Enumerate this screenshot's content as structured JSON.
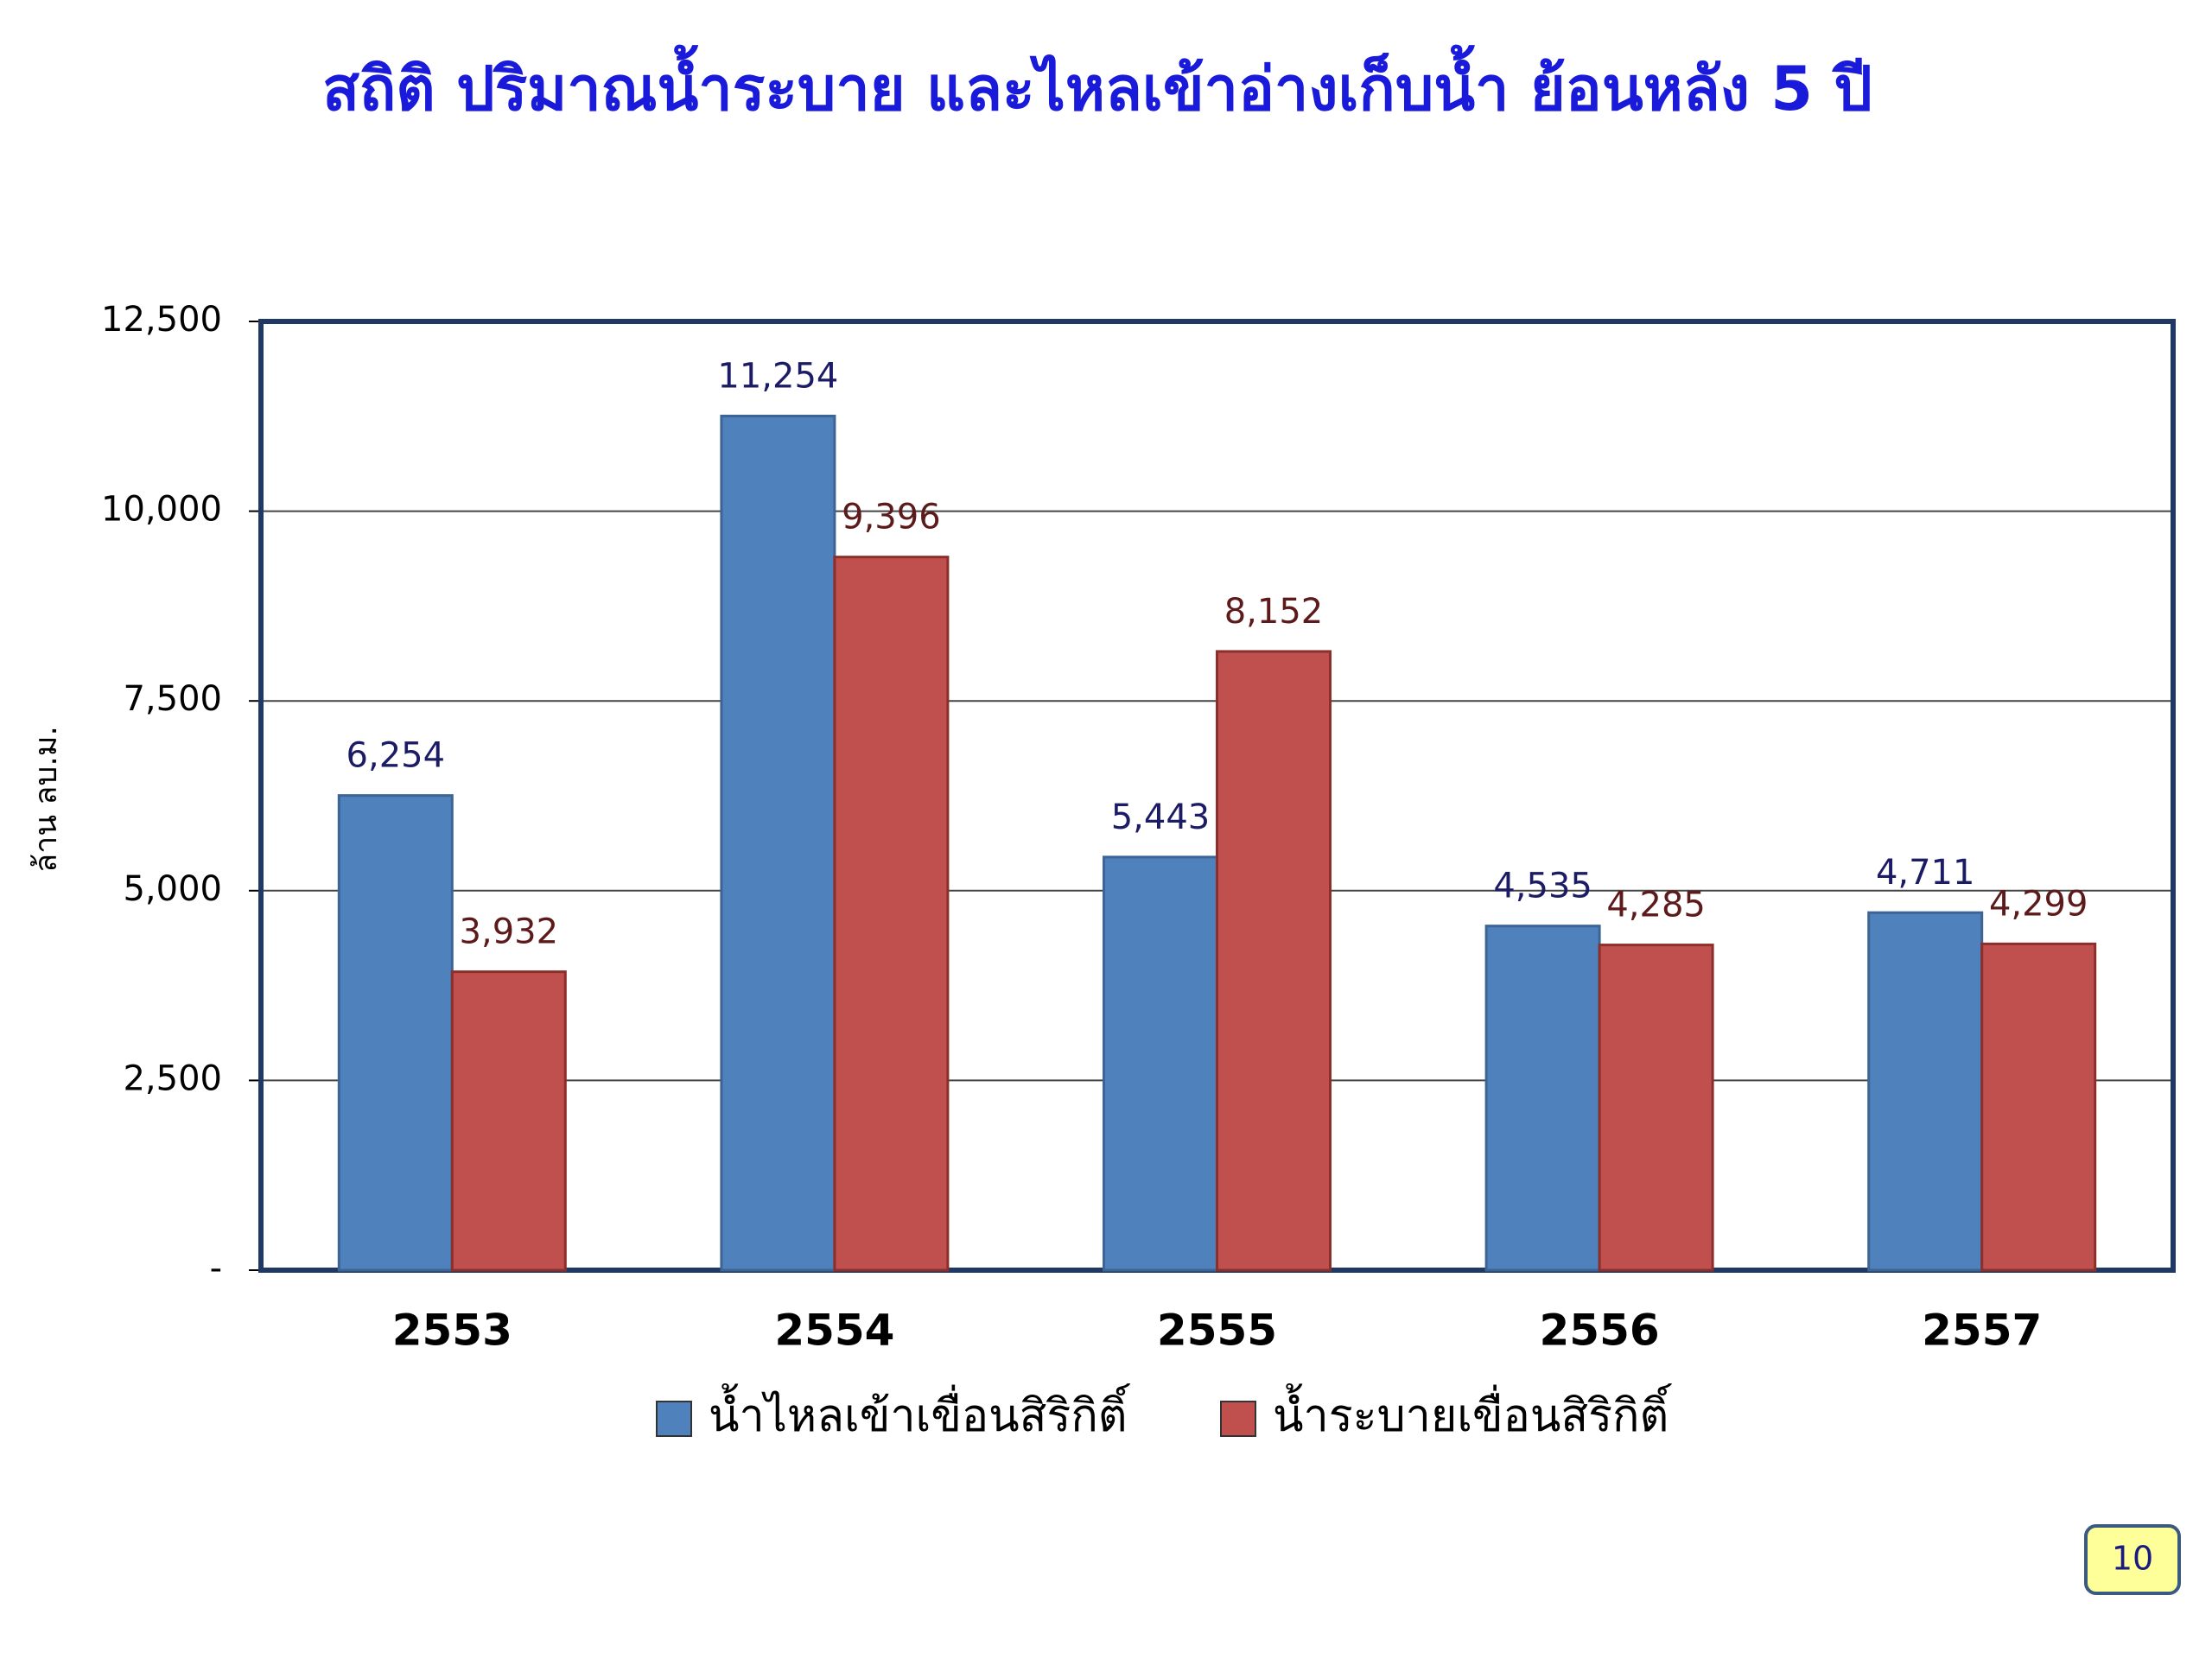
{
  "chart_data": {
    "type": "bar",
    "title": "สถิติ ปริมาณน้ำระบาย และไหลเข้าอ่างเก็บน้ำ  ย้อนหลัง 5 ปี",
    "y_label": "ล้าน ลบ.ม.",
    "categories": [
      "2553",
      "2554",
      "2555",
      "2556",
      "2557"
    ],
    "series": [
      {
        "name": "น้ำไหลเข้าเขื่อนสิริกิติ์",
        "color": "#4f81bd",
        "values": [
          6254,
          11254,
          5443,
          4535,
          4711
        ],
        "value_labels": [
          "6,254",
          "11,254",
          "5,443",
          "4,535",
          "4,711"
        ]
      },
      {
        "name": "น้ำระบายเขื่อนสิริกิติ์",
        "color": "#c0504d",
        "values": [
          3932,
          9396,
          8152,
          4285,
          4299
        ],
        "value_labels": [
          "3,932",
          "9,396",
          "8,152",
          "4,285",
          "4,299"
        ]
      }
    ],
    "ylim": [
      0,
      12500
    ],
    "yticks": [
      {
        "value": 0,
        "label": "-"
      },
      {
        "value": 2500,
        "label": "2,500"
      },
      {
        "value": 5000,
        "label": "5,000"
      },
      {
        "value": 7500,
        "label": "7,500"
      },
      {
        "value": 10000,
        "label": "10,000"
      },
      {
        "value": 12500,
        "label": "12,500"
      }
    ],
    "grid": true,
    "legend": "bottom"
  },
  "page_number": "10"
}
